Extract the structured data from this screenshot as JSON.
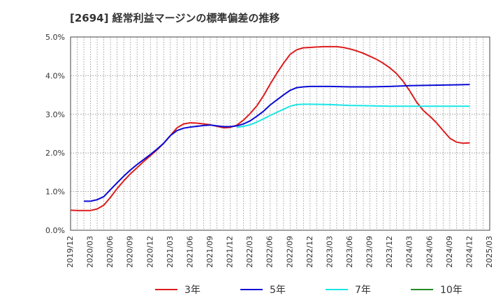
{
  "chart_data": {
    "type": "line",
    "title": "[2694]  経常利益マージンの標準偏差の推移",
    "xlabel": "",
    "ylabel": "",
    "ylim": [
      0,
      5.0
    ],
    "y_ticks": [
      "0.0%",
      "1.0%",
      "2.0%",
      "3.0%",
      "4.0%",
      "5.0%"
    ],
    "y_tick_values": [
      0,
      1,
      2,
      3,
      4,
      5
    ],
    "x_ticks": [
      "2019/12",
      "2020/03",
      "2020/06",
      "2020/09",
      "2020/12",
      "2021/03",
      "2021/06",
      "2021/09",
      "2021/12",
      "2022/03",
      "2022/06",
      "2022/09",
      "2022/12",
      "2023/03",
      "2023/06",
      "2023/09",
      "2023/12",
      "2024/03",
      "2024/06",
      "2024/09",
      "2024/12",
      "2025/03"
    ],
    "grid": true,
    "legend_position": "bottom",
    "series": [
      {
        "name": "3年",
        "color": "#dd1c1c",
        "points": [
          [
            "2019/12",
            0.52
          ],
          [
            "2020/01",
            0.51
          ],
          [
            "2020/02",
            0.51
          ],
          [
            "2020/03",
            0.51
          ],
          [
            "2020/04",
            0.55
          ],
          [
            "2020/05",
            0.65
          ],
          [
            "2020/06",
            0.85
          ],
          [
            "2020/07",
            1.08
          ],
          [
            "2020/08",
            1.28
          ],
          [
            "2020/09",
            1.46
          ],
          [
            "2020/10",
            1.62
          ],
          [
            "2020/11",
            1.78
          ],
          [
            "2020/12",
            1.93
          ],
          [
            "2021/01",
            2.08
          ],
          [
            "2021/02",
            2.25
          ],
          [
            "2021/03",
            2.45
          ],
          [
            "2021/04",
            2.65
          ],
          [
            "2021/05",
            2.75
          ],
          [
            "2021/06",
            2.78
          ],
          [
            "2021/07",
            2.77
          ],
          [
            "2021/08",
            2.75
          ],
          [
            "2021/09",
            2.73
          ],
          [
            "2021/10",
            2.69
          ],
          [
            "2021/11",
            2.65
          ],
          [
            "2021/12",
            2.66
          ],
          [
            "2022/01",
            2.72
          ],
          [
            "2022/02",
            2.85
          ],
          [
            "2022/03",
            3.02
          ],
          [
            "2022/04",
            3.22
          ],
          [
            "2022/05",
            3.48
          ],
          [
            "2022/06",
            3.78
          ],
          [
            "2022/07",
            4.06
          ],
          [
            "2022/08",
            4.32
          ],
          [
            "2022/09",
            4.55
          ],
          [
            "2022/10",
            4.67
          ],
          [
            "2022/11",
            4.72
          ],
          [
            "2022/12",
            4.73
          ],
          [
            "2023/01",
            4.74
          ],
          [
            "2023/02",
            4.75
          ],
          [
            "2023/03",
            4.75
          ],
          [
            "2023/04",
            4.75
          ],
          [
            "2023/05",
            4.73
          ],
          [
            "2023/06",
            4.69
          ],
          [
            "2023/07",
            4.64
          ],
          [
            "2023/08",
            4.58
          ],
          [
            "2023/09",
            4.5
          ],
          [
            "2023/10",
            4.42
          ],
          [
            "2023/11",
            4.32
          ],
          [
            "2023/12",
            4.2
          ],
          [
            "2024/01",
            4.05
          ],
          [
            "2024/02",
            3.85
          ],
          [
            "2024/03",
            3.6
          ],
          [
            "2024/04",
            3.32
          ],
          [
            "2024/05",
            3.1
          ],
          [
            "2024/06",
            2.95
          ],
          [
            "2024/07",
            2.78
          ],
          [
            "2024/08",
            2.58
          ],
          [
            "2024/09",
            2.38
          ],
          [
            "2024/10",
            2.28
          ],
          [
            "2024/11",
            2.25
          ],
          [
            "2024/12",
            2.26
          ]
        ]
      },
      {
        "name": "5年",
        "color": "#0a0ad6",
        "points": [
          [
            "2020/02",
            0.75
          ],
          [
            "2020/03",
            0.75
          ],
          [
            "2020/04",
            0.79
          ],
          [
            "2020/05",
            0.87
          ],
          [
            "2020/06",
            1.05
          ],
          [
            "2020/07",
            1.23
          ],
          [
            "2020/08",
            1.4
          ],
          [
            "2020/09",
            1.56
          ],
          [
            "2020/10",
            1.7
          ],
          [
            "2020/11",
            1.83
          ],
          [
            "2020/12",
            1.96
          ],
          [
            "2021/01",
            2.1
          ],
          [
            "2021/02",
            2.25
          ],
          [
            "2021/03",
            2.45
          ],
          [
            "2021/04",
            2.58
          ],
          [
            "2021/05",
            2.64
          ],
          [
            "2021/06",
            2.67
          ],
          [
            "2021/07",
            2.69
          ],
          [
            "2021/08",
            2.71
          ],
          [
            "2021/09",
            2.72
          ],
          [
            "2021/10",
            2.7
          ],
          [
            "2021/11",
            2.68
          ],
          [
            "2021/12",
            2.68
          ],
          [
            "2022/01",
            2.7
          ],
          [
            "2022/02",
            2.75
          ],
          [
            "2022/03",
            2.83
          ],
          [
            "2022/04",
            2.95
          ],
          [
            "2022/05",
            3.08
          ],
          [
            "2022/06",
            3.24
          ],
          [
            "2022/07",
            3.37
          ],
          [
            "2022/08",
            3.5
          ],
          [
            "2022/09",
            3.62
          ],
          [
            "2022/10",
            3.69
          ],
          [
            "2022/11",
            3.71
          ],
          [
            "2022/12",
            3.72
          ],
          [
            "2023/03",
            3.72
          ],
          [
            "2023/06",
            3.71
          ],
          [
            "2023/09",
            3.71
          ],
          [
            "2023/12",
            3.72
          ],
          [
            "2024/03",
            3.74
          ],
          [
            "2024/06",
            3.75
          ],
          [
            "2024/09",
            3.76
          ],
          [
            "2024/12",
            3.77
          ]
        ]
      },
      {
        "name": "7年",
        "color": "#19e6e6",
        "points": [
          [
            "2022/01",
            2.66
          ],
          [
            "2022/02",
            2.69
          ],
          [
            "2022/03",
            2.73
          ],
          [
            "2022/04",
            2.8
          ],
          [
            "2022/05",
            2.88
          ],
          [
            "2022/06",
            2.97
          ],
          [
            "2022/07",
            3.05
          ],
          [
            "2022/08",
            3.13
          ],
          [
            "2022/09",
            3.21
          ],
          [
            "2022/10",
            3.25
          ],
          [
            "2022/11",
            3.26
          ],
          [
            "2022/12",
            3.26
          ],
          [
            "2023/03",
            3.25
          ],
          [
            "2023/06",
            3.23
          ],
          [
            "2023/09",
            3.22
          ],
          [
            "2023/12",
            3.21
          ],
          [
            "2024/03",
            3.21
          ],
          [
            "2024/06",
            3.21
          ],
          [
            "2024/09",
            3.21
          ],
          [
            "2024/12",
            3.21
          ]
        ]
      },
      {
        "name": "10年",
        "color": "#228b22",
        "points": []
      }
    ]
  }
}
